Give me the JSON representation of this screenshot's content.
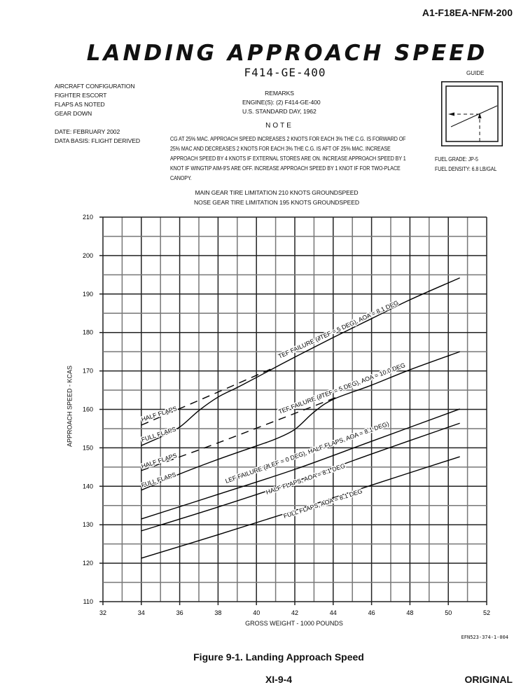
{
  "header": {
    "doc_id": "A1-F18EA-NFM-200"
  },
  "title": "LANDING APPROACH SPEED",
  "engine_title": "F414-GE-400",
  "config": {
    "lines": [
      "AIRCRAFT CONFIGURATION",
      "FIGHTER ESCORT",
      "FLAPS AS NOTED",
      "GEAR DOWN"
    ],
    "date": "DATE: FEBRUARY 2002",
    "data_basis": "DATA BASIS: FLIGHT DERIVED"
  },
  "remarks": {
    "title": "REMARKS",
    "lines": [
      "ENGINE(S): (2) F414-GE-400",
      "U.S. STANDARD DAY, 1962"
    ]
  },
  "note": {
    "title": "NOTE",
    "text": "CG AT 25% MAC. APPROACH SPEED INCREASES 2 KNOTS FOR EACH 3% THE C.G. IS FORWARD OF 25% MAC AND DECREASES 2 KNOTS FOR EACH 3% THE C.G. IS AFT OF 25% MAC. INCREASE APPROACH SPEED BY 4 KNOTS IF EXTERNAL STORES ARE ON. INCREASE APPROACH SPEED BY 1 KNOT IF WINGTIP AIM-9'S ARE OFF. INCREASE APPROACH SPEED BY 1 KNOT IF FOR TWO-PLACE CANOPY."
  },
  "limits": [
    "MAIN GEAR TIRE LIMITATION 210 KNOTS GROUNDSPEED",
    "NOSE GEAR TIRE LIMITATION 195 KNOTS GROUNDSPEED"
  ],
  "guide": {
    "label": "GUIDE"
  },
  "fuel": {
    "grade": "FUEL GRADE: JP-5",
    "density": "FUEL DENSITY: 6.8 LB/GAL"
  },
  "chart_data": {
    "type": "line",
    "xlabel": "GROSS WEIGHT - 1000 POUNDS",
    "ylabel": "APPROACH SPEED - KCAS",
    "xlim": [
      32,
      52
    ],
    "ylim": [
      110,
      210
    ],
    "xticks": [
      32,
      34,
      36,
      38,
      40,
      42,
      44,
      46,
      48,
      50,
      52
    ],
    "yticks": [
      110,
      120,
      130,
      140,
      150,
      160,
      170,
      180,
      190,
      200,
      210
    ],
    "grid": true,
    "series": [
      {
        "name": "TEF FAILURE (∂TEF = 5 DEG), AOA = 8.1 DEG",
        "style": "solid",
        "sublabel": "FULL FLAPS",
        "x": [
          34,
          35,
          36,
          37,
          38,
          39,
          40,
          42,
          44,
          46,
          48,
          50.6
        ],
        "y": [
          150.6,
          152.8,
          155.4,
          159.7,
          163.2,
          165.7,
          168.3,
          173.6,
          178.7,
          183.6,
          188.5,
          194.2
        ]
      },
      {
        "name": "HALF FLAPS",
        "style": "dashed",
        "x": [
          34,
          38,
          40.8
        ],
        "y": [
          155.9,
          164.5,
          170.6
        ]
      },
      {
        "name": "TEF FAILURE (∂TEF = 5 DEG), AOA = 10.0 DEG",
        "style": "solid",
        "sublabel": "FULL FLAPS",
        "x": [
          34,
          36,
          38,
          40,
          41,
          42,
          43,
          44,
          46,
          48,
          50.6
        ],
        "y": [
          139.0,
          143.2,
          147.0,
          150.5,
          152.3,
          154.8,
          159.3,
          162.6,
          166.3,
          170.3,
          175.0
        ]
      },
      {
        "name": "HALF FLAPS",
        "style": "dashed",
        "x": [
          34,
          38,
          44.2
        ],
        "y": [
          144.1,
          151.3,
          163.2
        ]
      },
      {
        "name": "LEF FAILURE (∂LEF = 0 DEG), HALF FLAPS, AOA = 8.1 DEG)",
        "style": "solid",
        "x": [
          34,
          38,
          42,
          46,
          50.6
        ],
        "y": [
          131.5,
          137.9,
          144.4,
          151.7,
          160.1
        ]
      },
      {
        "name": "HALF FLAPS, AOA = 8.1 DEG",
        "style": "solid",
        "x": [
          34,
          38,
          42,
          46,
          50.6
        ],
        "y": [
          128.4,
          134.6,
          141.2,
          148.4,
          156.4
        ]
      },
      {
        "name": "FULL FLAPS, AOA = 8.1 DEG",
        "style": "solid",
        "x": [
          34,
          38,
          42,
          46,
          50.6
        ],
        "y": [
          121.3,
          127.4,
          133.7,
          140.3,
          147.7
        ]
      }
    ]
  },
  "footer": {
    "code": "EFN523-374-1-004",
    "caption": "Figure  9-1.  Landing Approach Speed",
    "page": "XI-9-4",
    "status": "ORIGINAL"
  }
}
